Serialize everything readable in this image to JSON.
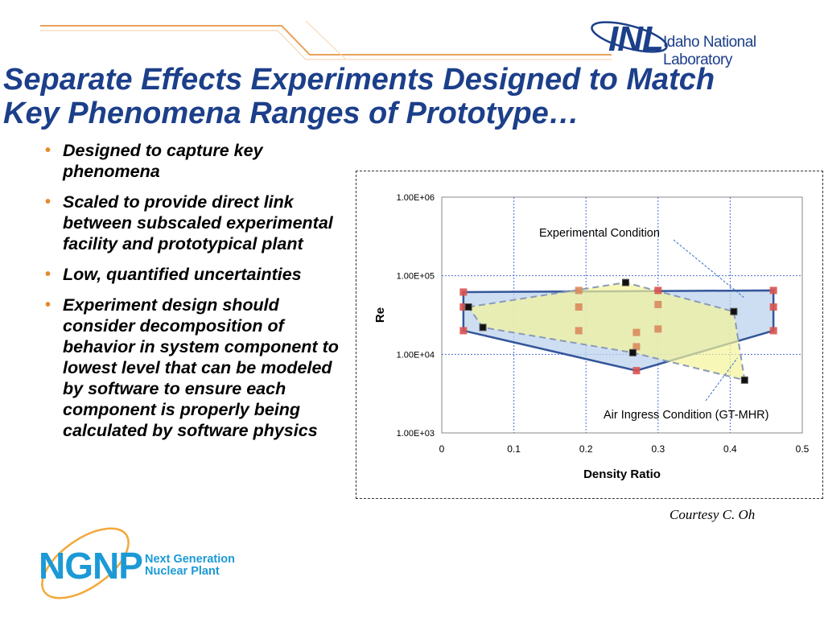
{
  "header": {
    "logo": {
      "icon": "inl-atom-icon",
      "abbr": "INL",
      "name": "Idaho National Laboratory"
    }
  },
  "slide": {
    "title_line1": "Separate Effects Experiments Designed to Match",
    "title_line2": "Key Phenomena Ranges of Prototype…",
    "bullets": [
      "Designed to capture key phenomena",
      "Scaled to provide direct link between subscaled experimental facility and prototypical plant",
      "Low, quantified uncertainties",
      "Experiment design should consider decomposition of behavior in system component to lowest level that can be modeled by software to ensure each component is properly being calculated by software physics"
    ],
    "courtesy": "Courtesy C. Oh"
  },
  "footer": {
    "logo": {
      "icon": "ngnp-orbit-icon",
      "abbr": "NGNP",
      "name_line1": "Next Generation",
      "name_line2": "Nuclear Plant"
    }
  },
  "colors": {
    "title": "#1c3f8a",
    "bullet": "#e58a2a",
    "exp_fill": "#bcd3ee",
    "exp_line": "#34569a",
    "air_fill": "#f3f39a",
    "air_line": "#8a9ab8",
    "red_marker": "#d9534f",
    "orange_marker": "#d98a5c",
    "black_marker": "#111111"
  },
  "chart_data": {
    "type": "scatter",
    "xlabel": "Density Ratio",
    "ylabel": "Re",
    "xlim": [
      0,
      0.5
    ],
    "ylim": [
      1000,
      1000000
    ],
    "yscale": "log",
    "grid": true,
    "x_ticks": [
      "0",
      "0.1",
      "0.2",
      "0.3",
      "0.4",
      "0.5"
    ],
    "y_ticks": [
      "1.00E+03",
      "1.00E+04",
      "1.00E+05",
      "1.00E+06"
    ],
    "annotations": [
      {
        "text": "Experimental Condition",
        "target_x": 0.42,
        "target_y": 52000
      },
      {
        "text": "Air Ingress Condition (GT-MHR)",
        "target_x": 0.41,
        "target_y": 9000
      }
    ],
    "series": [
      {
        "name": "Experimental Condition",
        "kind": "region",
        "points": [
          [
            0.03,
            62000
          ],
          [
            0.46,
            65000
          ],
          [
            0.46,
            20000
          ],
          [
            0.27,
            6200
          ],
          [
            0.03,
            20000
          ]
        ],
        "markers": [
          [
            0.03,
            62000
          ],
          [
            0.03,
            40000
          ],
          [
            0.03,
            20000
          ],
          [
            0.19,
            65000
          ],
          [
            0.19,
            40000
          ],
          [
            0.19,
            20000
          ],
          [
            0.27,
            19000
          ],
          [
            0.27,
            12500
          ],
          [
            0.27,
            6200
          ],
          [
            0.3,
            65000
          ],
          [
            0.3,
            43000
          ],
          [
            0.3,
            21000
          ],
          [
            0.46,
            65000
          ],
          [
            0.46,
            40000
          ],
          [
            0.46,
            20000
          ]
        ]
      },
      {
        "name": "Air Ingress Condition (GT-MHR)",
        "kind": "region",
        "points": [
          [
            0.037,
            40000
          ],
          [
            0.255,
            82000
          ],
          [
            0.405,
            35000
          ],
          [
            0.42,
            4700
          ],
          [
            0.265,
            10500
          ],
          [
            0.057,
            22000
          ]
        ],
        "markers": [
          [
            0.037,
            40000
          ],
          [
            0.057,
            22000
          ],
          [
            0.255,
            82000
          ],
          [
            0.265,
            10500
          ],
          [
            0.405,
            35000
          ],
          [
            0.42,
            4700
          ]
        ]
      }
    ]
  }
}
